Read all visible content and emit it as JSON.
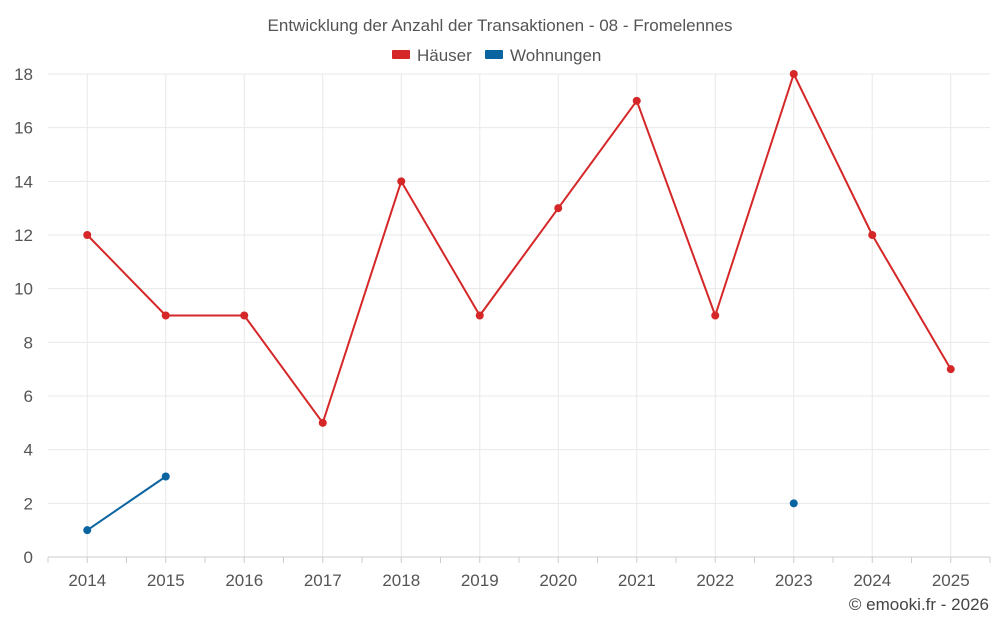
{
  "chart_data": {
    "type": "line",
    "title": "Entwicklung der Anzahl der Transaktionen - 08 - Fromelennes",
    "categories": [
      "2014",
      "2015",
      "2016",
      "2017",
      "2018",
      "2019",
      "2020",
      "2021",
      "2022",
      "2023",
      "2024",
      "2025"
    ],
    "ylim": [
      0,
      18
    ],
    "yticks": [
      0,
      2,
      4,
      6,
      8,
      10,
      12,
      14,
      16,
      18
    ],
    "grid": true,
    "legend_position": "top-center",
    "series": [
      {
        "name": "Häuser",
        "color": "#d62728",
        "values": [
          12,
          9,
          9,
          5,
          14,
          9,
          13,
          17,
          9,
          18,
          12,
          7
        ]
      },
      {
        "name": "Wohnungen",
        "color": "#0a64a0",
        "values": [
          1,
          3,
          null,
          null,
          null,
          null,
          null,
          null,
          null,
          2,
          null,
          null
        ]
      }
    ]
  },
  "credit": "© emooki.fr - 2026"
}
